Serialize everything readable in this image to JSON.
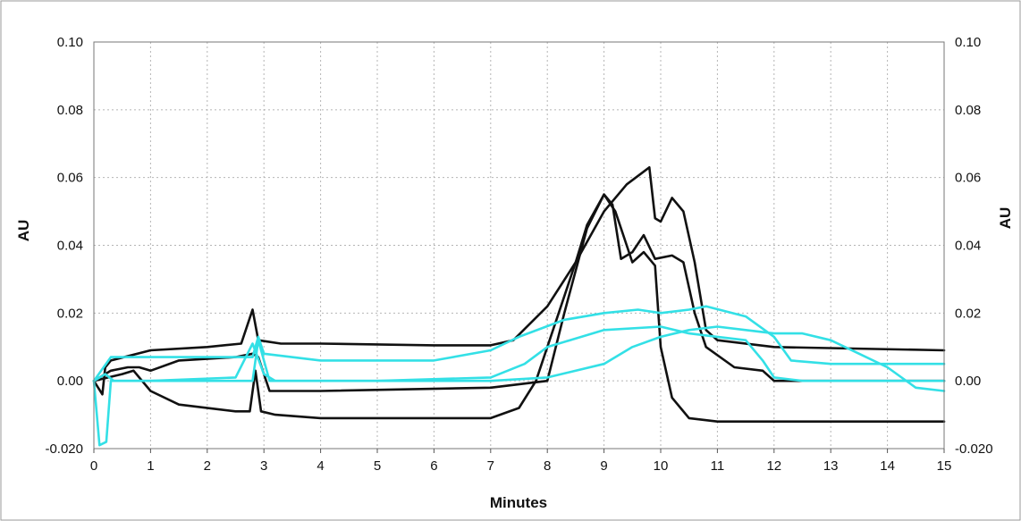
{
  "chart_data": {
    "type": "line",
    "title": "",
    "xlabel": "Minutes",
    "ylabel_left": "AU",
    "ylabel_right": "AU",
    "xlim": [
      0,
      15
    ],
    "ylim": [
      -0.02,
      0.1
    ],
    "grid": true,
    "x_ticks": [
      "0",
      "1",
      "2",
      "3",
      "4",
      "5",
      "6",
      "7",
      "8",
      "9",
      "10",
      "11",
      "12",
      "13",
      "14",
      "15"
    ],
    "y_ticks_left": [
      "0.10",
      "0.08",
      "0.06",
      "0.04",
      "0.02",
      "0.00",
      "-0.020"
    ],
    "y_ticks_right": [
      "0.10",
      "0.08",
      "0.06",
      "0.04",
      "0.02",
      "0.00",
      "-0.020"
    ],
    "colors": {
      "black": "#111111",
      "cyan": "#33e0e6",
      "grid": "#b5b5b5"
    },
    "series": [
      {
        "color": "black",
        "points": [
          [
            0,
            0
          ],
          [
            0.15,
            -0.004
          ],
          [
            0.2,
            0.004
          ],
          [
            0.3,
            0.006
          ],
          [
            1,
            0.009
          ],
          [
            2.0,
            0.01
          ],
          [
            2.6,
            0.011
          ],
          [
            2.8,
            0.021
          ],
          [
            2.9,
            0.012
          ],
          [
            3.3,
            0.011
          ],
          [
            4,
            0.011
          ],
          [
            6,
            0.0105
          ],
          [
            7,
            0.0105
          ],
          [
            7.4,
            0.012
          ],
          [
            8.0,
            0.022
          ],
          [
            8.5,
            0.035
          ],
          [
            9.0,
            0.05
          ],
          [
            9.4,
            0.058
          ],
          [
            9.8,
            0.063
          ],
          [
            9.9,
            0.048
          ],
          [
            10.0,
            0.047
          ],
          [
            10.2,
            0.054
          ],
          [
            10.4,
            0.05
          ],
          [
            10.6,
            0.035
          ],
          [
            10.8,
            0.015
          ],
          [
            11,
            0.012
          ],
          [
            12,
            0.01
          ],
          [
            15,
            0.009
          ]
        ]
      },
      {
        "color": "black",
        "points": [
          [
            0,
            0
          ],
          [
            0.3,
            0.003
          ],
          [
            0.6,
            0.004
          ],
          [
            0.8,
            0.004
          ],
          [
            1,
            0.003
          ],
          [
            1.5,
            0.006
          ],
          [
            2.5,
            0.007
          ],
          [
            2.8,
            0.008
          ],
          [
            2.9,
            0.007
          ],
          [
            3.1,
            -0.003
          ],
          [
            4,
            -0.003
          ],
          [
            7,
            -0.002
          ],
          [
            8.0,
            0.0
          ],
          [
            8.3,
            0.02
          ],
          [
            8.7,
            0.045
          ],
          [
            9.0,
            0.055
          ],
          [
            9.15,
            0.052
          ],
          [
            9.3,
            0.036
          ],
          [
            9.5,
            0.038
          ],
          [
            9.7,
            0.043
          ],
          [
            9.9,
            0.036
          ],
          [
            10.2,
            0.037
          ],
          [
            10.4,
            0.035
          ],
          [
            10.6,
            0.02
          ],
          [
            10.8,
            0.01
          ],
          [
            11.3,
            0.004
          ],
          [
            11.8,
            0.003
          ],
          [
            12.0,
            0.0
          ],
          [
            12.5,
            0.0
          ],
          [
            15,
            0.0
          ]
        ]
      },
      {
        "color": "black",
        "points": [
          [
            0,
            0
          ],
          [
            0.5,
            0.002
          ],
          [
            0.7,
            0.003
          ],
          [
            1.0,
            -0.003
          ],
          [
            1.5,
            -0.007
          ],
          [
            2.5,
            -0.009
          ],
          [
            2.75,
            -0.009
          ],
          [
            2.85,
            0.003
          ],
          [
            2.95,
            -0.009
          ],
          [
            3.2,
            -0.01
          ],
          [
            4,
            -0.011
          ],
          [
            6,
            -0.011
          ],
          [
            7.0,
            -0.011
          ],
          [
            7.5,
            -0.008
          ],
          [
            7.8,
            0.0
          ],
          [
            8.2,
            0.02
          ],
          [
            8.5,
            0.035
          ],
          [
            8.7,
            0.046
          ],
          [
            9.0,
            0.055
          ],
          [
            9.2,
            0.05
          ],
          [
            9.5,
            0.035
          ],
          [
            9.7,
            0.038
          ],
          [
            9.9,
            0.034
          ],
          [
            10.0,
            0.01
          ],
          [
            10.2,
            -0.005
          ],
          [
            10.5,
            -0.011
          ],
          [
            11,
            -0.012
          ],
          [
            15,
            -0.012
          ]
        ]
      },
      {
        "color": "cyan",
        "points": [
          [
            0,
            0
          ],
          [
            0.1,
            -0.019
          ],
          [
            0.22,
            -0.018
          ],
          [
            0.3,
            0.0
          ],
          [
            1,
            0.0
          ],
          [
            2.5,
            0.0
          ],
          [
            2.8,
            0.0
          ],
          [
            2.9,
            0.012
          ],
          [
            3.1,
            0.0
          ],
          [
            4,
            0.0
          ],
          [
            7,
            0.0
          ],
          [
            8,
            0.001
          ],
          [
            9,
            0.005
          ],
          [
            9.5,
            0.01
          ],
          [
            10,
            0.013
          ],
          [
            10.5,
            0.015
          ],
          [
            11,
            0.016
          ],
          [
            11.5,
            0.015
          ],
          [
            12,
            0.014
          ],
          [
            12.5,
            0.014
          ],
          [
            13,
            0.012
          ],
          [
            13.5,
            0.008
          ],
          [
            14,
            0.004
          ],
          [
            14.5,
            -0.002
          ],
          [
            15,
            -0.003
          ]
        ]
      },
      {
        "color": "cyan",
        "points": [
          [
            0,
            0
          ],
          [
            0.2,
            0.002
          ],
          [
            0.35,
            0.0
          ],
          [
            1,
            0.0
          ],
          [
            2.5,
            0.001
          ],
          [
            2.8,
            0.011
          ],
          [
            3.0,
            0.002
          ],
          [
            3.2,
            0.0
          ],
          [
            5,
            0.0
          ],
          [
            7,
            0.001
          ],
          [
            7.6,
            0.005
          ],
          [
            8.0,
            0.01
          ],
          [
            9,
            0.015
          ],
          [
            10,
            0.016
          ],
          [
            10.5,
            0.014
          ],
          [
            11,
            0.013
          ],
          [
            11.5,
            0.012
          ],
          [
            11.8,
            0.006
          ],
          [
            12,
            0.001
          ],
          [
            12.5,
            0.0
          ],
          [
            15,
            0.0
          ]
        ]
      },
      {
        "color": "cyan",
        "points": [
          [
            0,
            0.0
          ],
          [
            0.3,
            0.007
          ],
          [
            1,
            0.007
          ],
          [
            2,
            0.007
          ],
          [
            2.8,
            0.007
          ],
          [
            2.9,
            0.013
          ],
          [
            3.0,
            0.008
          ],
          [
            4,
            0.006
          ],
          [
            6,
            0.006
          ],
          [
            7,
            0.009
          ],
          [
            7.5,
            0.013
          ],
          [
            8.3,
            0.018
          ],
          [
            9,
            0.02
          ],
          [
            9.6,
            0.021
          ],
          [
            10,
            0.02
          ],
          [
            10.5,
            0.021
          ],
          [
            10.8,
            0.022
          ],
          [
            11.5,
            0.019
          ],
          [
            12,
            0.013
          ],
          [
            12.3,
            0.006
          ],
          [
            13,
            0.005
          ],
          [
            15,
            0.005
          ]
        ]
      }
    ]
  }
}
